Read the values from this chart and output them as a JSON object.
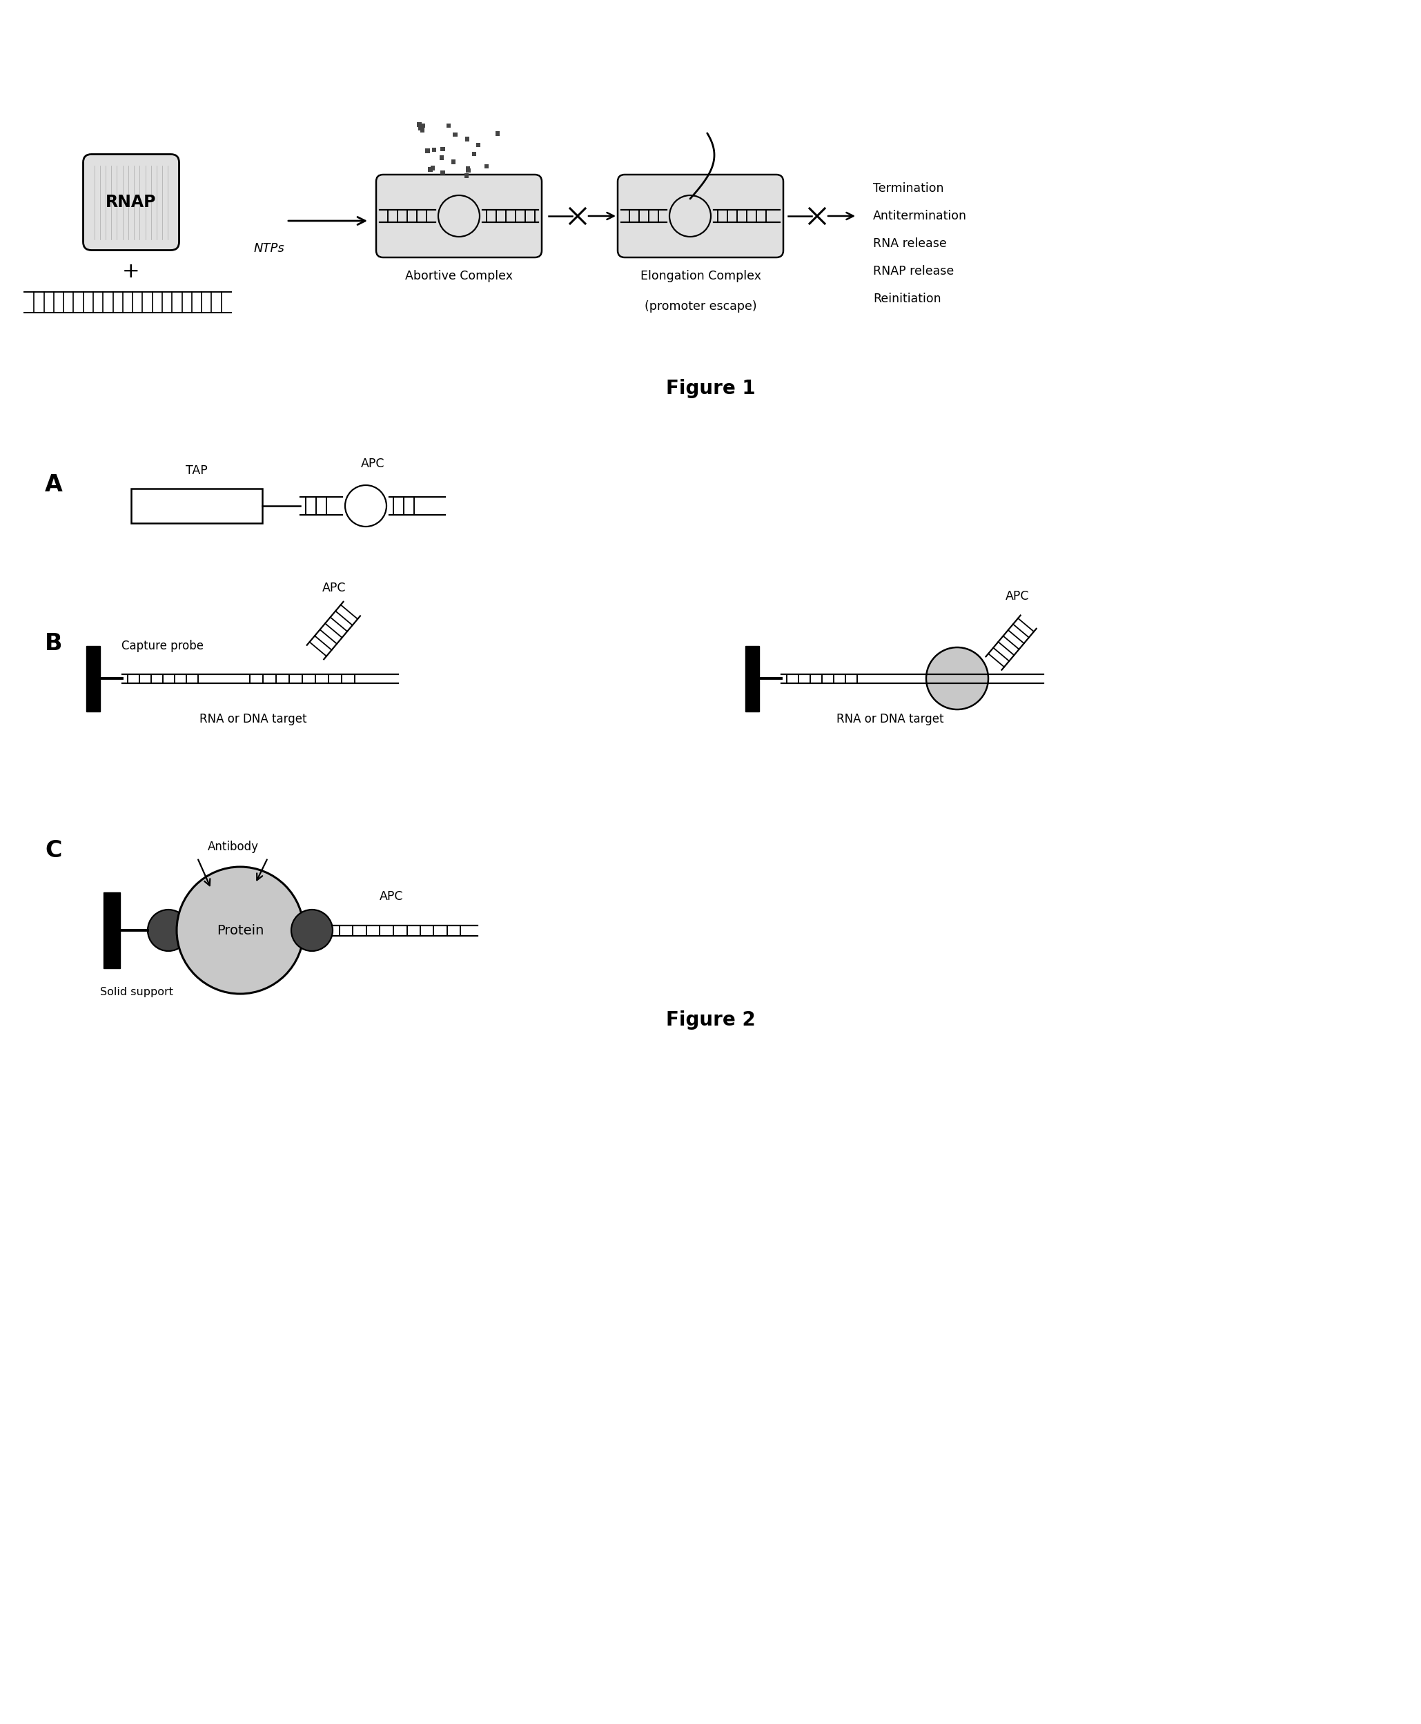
{
  "fig1_title": "Figure 1",
  "fig2_title": "Figure 2",
  "background_color": "#ffffff",
  "fig_width": 20.59,
  "fig_height": 24.98,
  "panel_A_label": "A",
  "panel_B_label": "B",
  "panel_C_label": "C",
  "rnap_text": "RNAP",
  "ntps_text": "NTPs",
  "abortive_text": "Abortive Complex",
  "elongation_text1": "Elongation Complex",
  "elongation_text2": "(promoter escape)",
  "termination_lines": [
    "Termination",
    "Antitermination",
    "RNA release",
    "RNAP release",
    "Reinitiation"
  ],
  "tap_label": "TAP",
  "apc_label_A": "APC",
  "apc_label_B1": "APC",
  "apc_label_B2": "APC",
  "apc_label_C": "APC",
  "capture_probe_label": "Capture probe",
  "rna_dna_target_B1": "RNA or DNA target",
  "rna_dna_target_B2": "RNA or DNA target",
  "protein_label": "Protein",
  "solid_support_label": "Solid support",
  "antibody_label": "Antibody",
  "gray_fill": "#c8c8c8",
  "light_gray": "#e0e0e0",
  "dark_gray": "#444444",
  "black": "#000000",
  "white": "#ffffff"
}
